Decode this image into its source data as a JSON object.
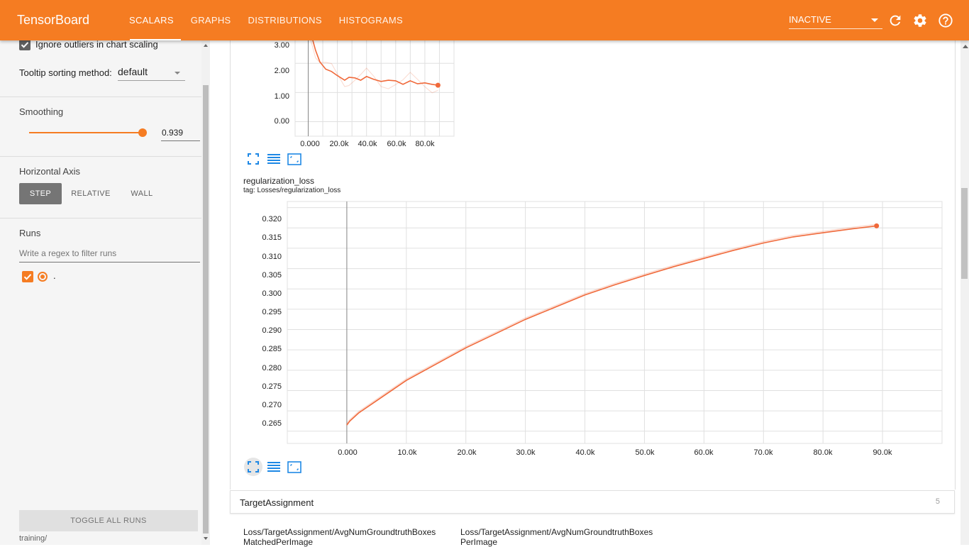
{
  "app": {
    "brand": "TensorBoard",
    "tabs": [
      {
        "label": "SCALARS",
        "active": true
      },
      {
        "label": "GRAPHS",
        "active": false
      },
      {
        "label": "DISTRIBUTIONS",
        "active": false
      },
      {
        "label": "HISTOGRAMS",
        "active": false
      }
    ],
    "status": "INACTIVE",
    "icons": [
      "refresh-icon",
      "settings-icon",
      "help-icon"
    ],
    "accent_color": "#f57c22"
  },
  "sidebar": {
    "ignore_outliers_label": "Ignore outliers in chart scaling",
    "ignore_outliers_checked": true,
    "tooltip_label": "Tooltip sorting method:",
    "tooltip_value": "default",
    "smoothing_label": "Smoothing",
    "smoothing_value": "0.939",
    "smoothing_fraction": 0.939,
    "horizontal_axis_label": "Horizontal Axis",
    "axis_options": [
      "STEP",
      "RELATIVE",
      "WALL"
    ],
    "axis_selected": "STEP",
    "runs_label": "Runs",
    "runs_filter_placeholder": "Write a regex to filter runs",
    "runs": [
      {
        "name": ".",
        "checked": true
      }
    ],
    "toggle_all_label": "TOGGLE ALL RUNS",
    "footer_path": "training/"
  },
  "charts": {
    "top_chart": {
      "y_ticks": [
        "3.00",
        "2.00",
        "1.00",
        "0.00"
      ],
      "x_ticks": [
        "0.000",
        "20.0k",
        "40.0k",
        "60.0k",
        "80.0k"
      ]
    },
    "reg_chart": {
      "title": "regularization_loss",
      "tag": "tag: Losses/regularization_loss",
      "y_ticks": [
        "0.320",
        "0.315",
        "0.310",
        "0.305",
        "0.300",
        "0.295",
        "0.290",
        "0.285",
        "0.280",
        "0.275",
        "0.270",
        "0.265"
      ],
      "x_ticks": [
        "0.000",
        "10.0k",
        "20.0k",
        "30.0k",
        "40.0k",
        "50.0k",
        "60.0k",
        "70.0k",
        "80.0k",
        "90.0k"
      ]
    }
  },
  "chart_data": [
    {
      "type": "line",
      "title": "",
      "xlabel": "",
      "ylabel": "",
      "xlim": [
        -9000,
        100000
      ],
      "ylim": [
        -0.5,
        3.2
      ],
      "x": [
        0,
        2000,
        5000,
        8000,
        12000,
        16000,
        20000,
        25000,
        28000,
        32000,
        36000,
        40000,
        45000,
        50000,
        55000,
        60000,
        65000,
        70000,
        75000,
        80000,
        85000,
        89000
      ],
      "series": [
        {
          "values": [
            3.4,
            3.0,
            2.45,
            2.05,
            1.8,
            1.72,
            1.58,
            1.42,
            1.52,
            1.5,
            1.42,
            1.55,
            1.45,
            1.38,
            1.42,
            1.4,
            1.28,
            1.4,
            1.3,
            1.33,
            1.28,
            1.25
          ],
          "color": "#f0693a"
        }
      ]
    },
    {
      "type": "line",
      "title": "regularization_loss",
      "xlabel": "",
      "ylabel": "",
      "xlim": [
        -10000,
        100000
      ],
      "ylim": [
        0.262,
        0.3215
      ],
      "x": [
        0,
        500,
        2000,
        5000,
        10000,
        15000,
        20000,
        25000,
        30000,
        35000,
        40000,
        45000,
        50000,
        55000,
        60000,
        65000,
        70000,
        75000,
        80000,
        85000,
        89000
      ],
      "series": [
        {
          "values": [
            0.2665,
            0.2675,
            0.2695,
            0.2725,
            0.2775,
            0.2815,
            0.2855,
            0.289,
            0.2925,
            0.2955,
            0.2985,
            0.301,
            0.3033,
            0.3055,
            0.3075,
            0.3095,
            0.3113,
            0.3128,
            0.3138,
            0.3148,
            0.3155
          ],
          "color": "#f0693a"
        }
      ]
    }
  ],
  "group": {
    "name": "TargetAssignment",
    "count": "5",
    "cards": [
      {
        "line1": "Loss/TargetAssignment/AvgNumGroundtruthBoxes",
        "line2": "MatchedPerImage"
      },
      {
        "line1": "Loss/TargetAssignment/AvgNumGroundtruthBoxes",
        "line2": "PerImage"
      }
    ]
  }
}
